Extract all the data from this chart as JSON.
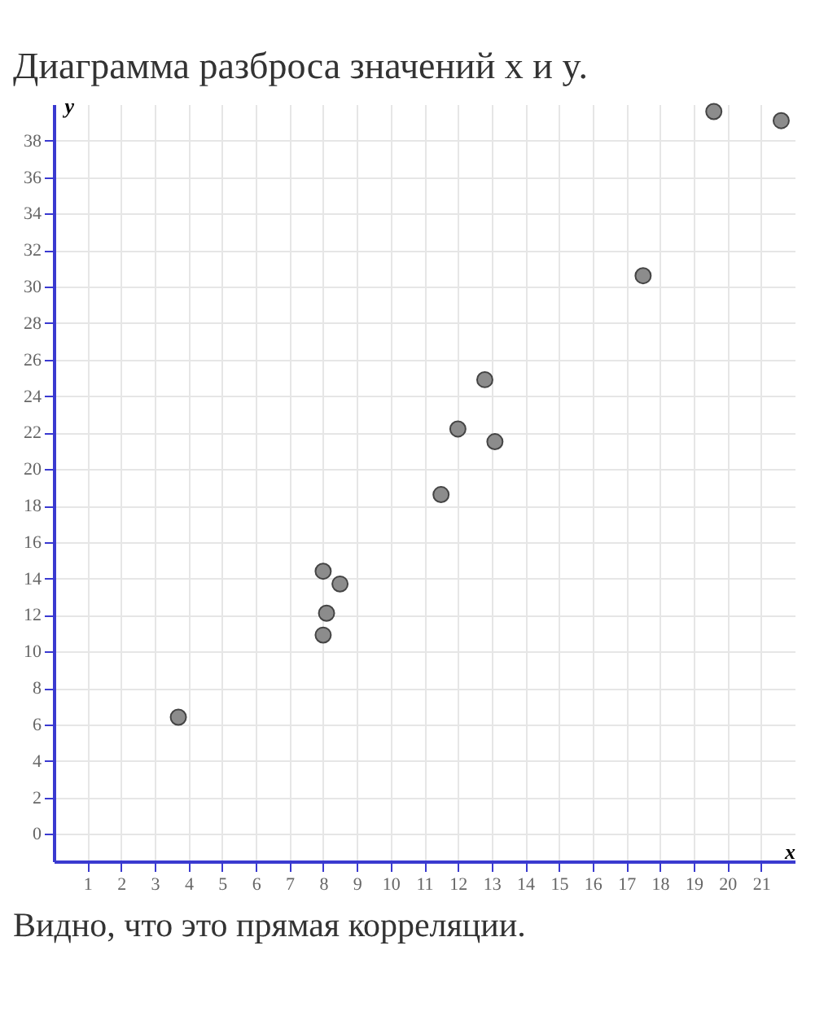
{
  "chart_data": {
    "type": "scatter",
    "title": "Диаграмма разброса значений x и y.",
    "xlabel": "x",
    "ylabel": "y",
    "annotations": [
      "Видно, что это прямая корреляции."
    ],
    "x": [
      3.7,
      8.0,
      8.5,
      8.1,
      8.0,
      11.5,
      12.0,
      13.1,
      12.8,
      17.5,
      19.6,
      21.6
    ],
    "series": [
      {
        "color": "#8c8c8c",
        "values": [
          6.4,
          14.4,
          13.7,
          12.1,
          10.9,
          18.6,
          22.2,
          21.5,
          24.9,
          30.6,
          39.6,
          39.1
        ]
      }
    ],
    "xlim": [
      0,
      22
    ],
    "ylim": [
      -1.5,
      40
    ],
    "xticks": [
      1,
      2,
      3,
      4,
      5,
      6,
      7,
      8,
      9,
      10,
      11,
      12,
      13,
      14,
      15,
      16,
      17,
      18,
      19,
      20,
      21
    ],
    "yticks": [
      0,
      2,
      4,
      6,
      8,
      10,
      12,
      14,
      16,
      18,
      20,
      22,
      24,
      26,
      28,
      30,
      32,
      34,
      36,
      38
    ],
    "grid": true,
    "marker": "circle",
    "legend": false
  }
}
